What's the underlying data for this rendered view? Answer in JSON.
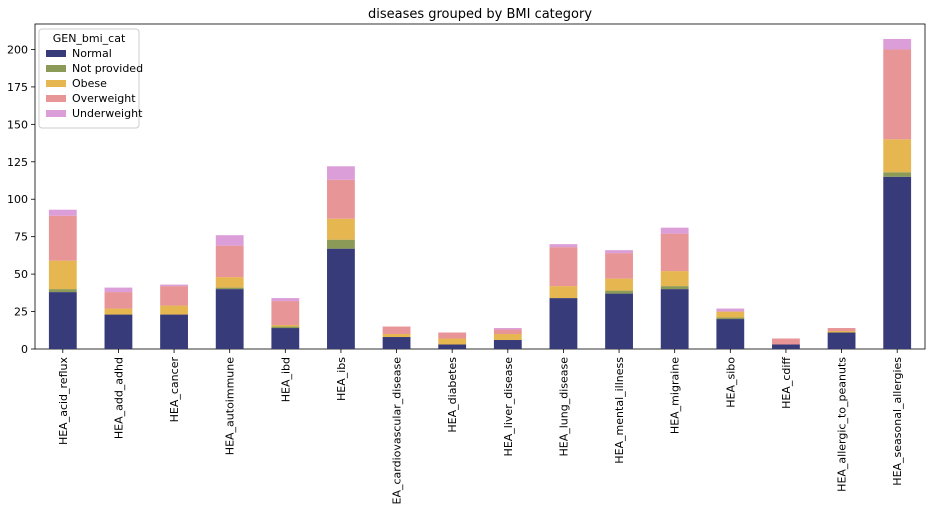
{
  "chart_data": {
    "type": "bar",
    "stacked": true,
    "title": "diseases grouped by BMI category",
    "xlabel": "",
    "ylabel": "",
    "ylim": [
      0,
      217
    ],
    "yticks": [
      0,
      25,
      50,
      75,
      100,
      125,
      150,
      175,
      200
    ],
    "grid": false,
    "legend": {
      "title": "GEN_bmi_cat",
      "placement": "top-left"
    },
    "categories": [
      "HEA_acid_reflux",
      "HEA_add_adhd",
      "HEA_cancer",
      "HEA_autoimmune",
      "HEA_ibd",
      "HEA_ibs",
      "HEA_cardiovascular_disease",
      "HEA_diabetes",
      "HEA_liver_disease",
      "HEA_lung_disease",
      "HEA_mental_illness",
      "HEA_migraine",
      "HEA_sibo",
      "HEA_cdiff",
      "HEA_allergic_to_peanuts",
      "HEA_seasonal_allergies"
    ],
    "series": [
      {
        "name": "Normal",
        "color": "#383b79",
        "values": [
          38,
          23,
          23,
          40,
          14,
          67,
          8,
          3,
          6,
          34,
          37,
          40,
          20,
          3,
          11,
          115
        ]
      },
      {
        "name": "Not provided",
        "color": "#8c9a57",
        "values": [
          2,
          0,
          0,
          1,
          1,
          6,
          0,
          0,
          0,
          0,
          2,
          2,
          1,
          0,
          0,
          3
        ]
      },
      {
        "name": "Obese",
        "color": "#e6b651",
        "values": [
          19,
          4,
          6,
          7,
          1,
          14,
          2,
          4,
          4,
          8,
          8,
          10,
          4,
          0,
          1,
          22
        ]
      },
      {
        "name": "Overweight",
        "color": "#e79597",
        "values": [
          30,
          11,
          13,
          21,
          16,
          26,
          5,
          4,
          3,
          26,
          17,
          25,
          0,
          4,
          2,
          60
        ]
      },
      {
        "name": "Underweight",
        "color": "#dc9ed8",
        "values": [
          4,
          3,
          1,
          7,
          2,
          9,
          0,
          0,
          1,
          2,
          2,
          4,
          2,
          0,
          0,
          7
        ]
      }
    ]
  }
}
